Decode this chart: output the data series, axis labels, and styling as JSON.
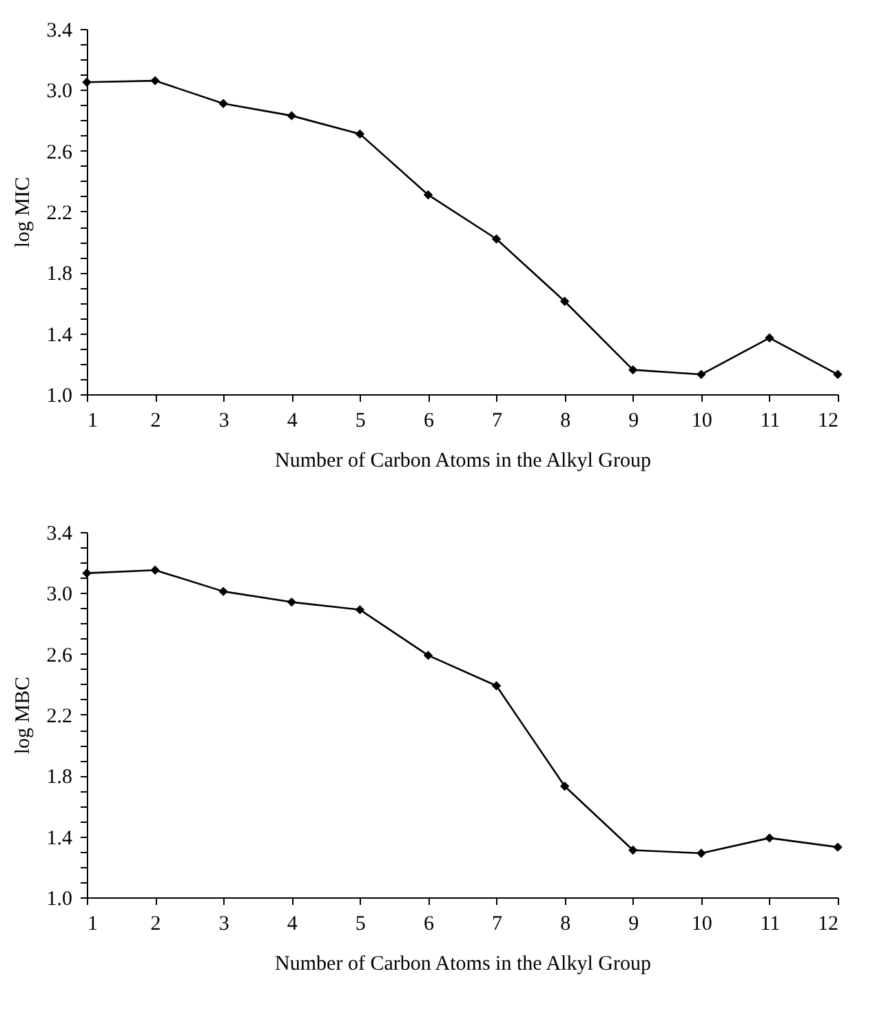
{
  "chart_data": [
    {
      "type": "line",
      "xlabel": "Number of Carbon Atoms in the Alkyl Group",
      "ylabel": "log MIC",
      "x": [
        1,
        2,
        3,
        4,
        5,
        6,
        7,
        8,
        9,
        10,
        11,
        12
      ],
      "series": [
        {
          "color": "#000000",
          "values": [
            3.05,
            3.06,
            2.91,
            2.83,
            2.71,
            2.31,
            2.02,
            1.61,
            1.16,
            1.13,
            1.37,
            1.13
          ]
        }
      ],
      "xlim": [
        1,
        12
      ],
      "xticks": [
        1,
        2,
        3,
        4,
        5,
        6,
        7,
        8,
        9,
        10,
        11,
        12
      ],
      "ylim": [
        1.0,
        3.4
      ],
      "yticks": [
        {
          "value": 1.0,
          "label": "1.0"
        },
        {
          "value": 1.1,
          "label": null
        },
        {
          "value": 1.2,
          "label": null
        },
        {
          "value": 1.3,
          "label": null
        },
        {
          "value": 1.4,
          "label": "1.4"
        },
        {
          "value": 1.5,
          "label": null
        },
        {
          "value": 1.6,
          "label": null
        },
        {
          "value": 1.7,
          "label": null
        },
        {
          "value": 1.8,
          "label": "1.8"
        },
        {
          "value": 1.9,
          "label": null
        },
        {
          "value": 2.0,
          "label": null
        },
        {
          "value": 2.1,
          "label": null
        },
        {
          "value": 2.2,
          "label": "2.2"
        },
        {
          "value": 2.3,
          "label": null
        },
        {
          "value": 2.4,
          "label": null
        },
        {
          "value": 2.5,
          "label": null
        },
        {
          "value": 2.6,
          "label": "2.6"
        },
        {
          "value": 2.7,
          "label": null
        },
        {
          "value": 2.8,
          "label": null
        },
        {
          "value": 2.9,
          "label": null
        },
        {
          "value": 3.0,
          "label": "3.0"
        },
        {
          "value": 3.1,
          "label": null
        },
        {
          "value": 3.2,
          "label": null
        },
        {
          "value": 3.3,
          "label": null
        },
        {
          "value": 3.4,
          "label": "3.4"
        }
      ],
      "grid": false,
      "marker": "diamond",
      "line_style": "solid"
    },
    {
      "type": "line",
      "xlabel": "Number of Carbon Atoms in the Alkyl Group",
      "ylabel": "log MBC",
      "x": [
        1,
        2,
        3,
        4,
        5,
        6,
        7,
        8,
        9,
        10,
        11,
        12
      ],
      "series": [
        {
          "color": "#000000",
          "values": [
            3.13,
            3.15,
            3.01,
            2.94,
            2.89,
            2.59,
            2.39,
            1.73,
            1.31,
            1.29,
            1.39,
            1.33
          ]
        }
      ],
      "xlim": [
        1,
        12
      ],
      "xticks": [
        1,
        2,
        3,
        4,
        5,
        6,
        7,
        8,
        9,
        10,
        11,
        12
      ],
      "ylim": [
        1.0,
        3.4
      ],
      "yticks": [
        {
          "value": 1.0,
          "label": "1.0"
        },
        {
          "value": 1.1,
          "label": null
        },
        {
          "value": 1.2,
          "label": null
        },
        {
          "value": 1.3,
          "label": null
        },
        {
          "value": 1.4,
          "label": "1.4"
        },
        {
          "value": 1.5,
          "label": null
        },
        {
          "value": 1.6,
          "label": null
        },
        {
          "value": 1.7,
          "label": null
        },
        {
          "value": 1.8,
          "label": "1.8"
        },
        {
          "value": 1.9,
          "label": null
        },
        {
          "value": 2.0,
          "label": null
        },
        {
          "value": 2.1,
          "label": null
        },
        {
          "value": 2.2,
          "label": "2.2"
        },
        {
          "value": 2.3,
          "label": null
        },
        {
          "value": 2.4,
          "label": null
        },
        {
          "value": 2.5,
          "label": null
        },
        {
          "value": 2.6,
          "label": "2.6"
        },
        {
          "value": 2.7,
          "label": null
        },
        {
          "value": 2.8,
          "label": null
        },
        {
          "value": 2.9,
          "label": null
        },
        {
          "value": 3.0,
          "label": "3.0"
        },
        {
          "value": 3.1,
          "label": null
        },
        {
          "value": 3.2,
          "label": null
        },
        {
          "value": 3.3,
          "label": null
        },
        {
          "value": 3.4,
          "label": "3.4"
        }
      ],
      "grid": false,
      "marker": "diamond",
      "line_style": "solid"
    }
  ]
}
